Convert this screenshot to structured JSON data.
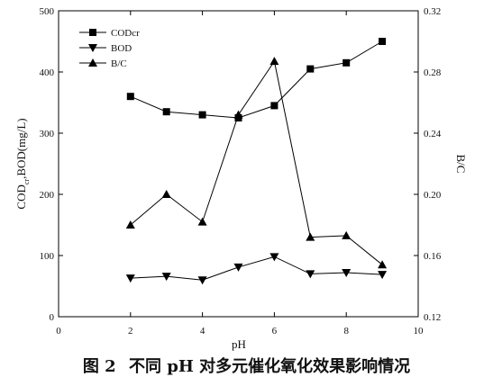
{
  "caption": {
    "figure_no": "图 2",
    "text": "不同 pH 对多元催化氧化效果影响情况"
  },
  "chart_data": {
    "type": "line",
    "xlabel": "pH",
    "ylabel_left": "COD",
    "ylabel_left_sub": "cr",
    "ylabel_left_rest": ",BOD(mg/L)",
    "ylabel_right": "B/C",
    "xlim": [
      0,
      10
    ],
    "ylim_left": [
      0,
      500
    ],
    "ylim_right": [
      0.12,
      0.32
    ],
    "x_ticks": [
      "0",
      "2",
      "4",
      "6",
      "8",
      "10"
    ],
    "y_left_ticks": [
      "0",
      "100",
      "200",
      "300",
      "400",
      "500"
    ],
    "y_right_ticks": [
      "0.12",
      "0.16",
      "0.20",
      "0.24",
      "0.28",
      "0.32"
    ],
    "grid": false,
    "legend_position": "top-left",
    "line_color": "#000000",
    "series": [
      {
        "name": "CODcr",
        "marker": "square",
        "axis": "left",
        "x": [
          2,
          3,
          4,
          5,
          6,
          7,
          8,
          9
        ],
        "values": [
          360,
          335,
          330,
          325,
          345,
          405,
          415,
          450
        ]
      },
      {
        "name": "BOD",
        "marker": "triangle-down",
        "axis": "left",
        "x": [
          2,
          3,
          4,
          5,
          6,
          7,
          8,
          9
        ],
        "values": [
          63,
          66,
          60,
          81,
          98,
          70,
          72,
          69
        ]
      },
      {
        "name": "B/C",
        "marker": "triangle-up",
        "axis": "right",
        "x": [
          2,
          3,
          4,
          5,
          6,
          7,
          8,
          9
        ],
        "values": [
          0.18,
          0.2,
          0.182,
          0.252,
          0.287,
          0.172,
          0.173,
          0.154
        ]
      }
    ]
  }
}
